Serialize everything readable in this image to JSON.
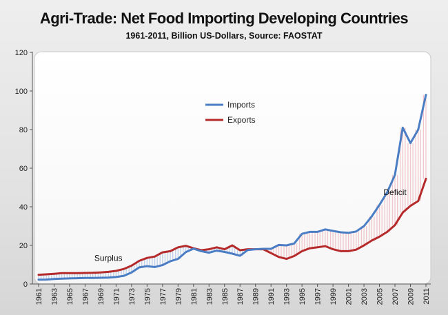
{
  "title": "Agri-Trade: Net Food Importing Developing Countries",
  "subtitle": "1961-2011, Billion US-Dollars, Source: FAOSTAT",
  "chart_data": {
    "type": "line",
    "title": "Agri-Trade: Net Food Importing Developing Countries",
    "subtitle": "1961-2011, Billion US-Dollars, Source: FAOSTAT",
    "xlabel": "",
    "ylabel": "",
    "xlim": [
      1961,
      2011
    ],
    "ylim": [
      0,
      120
    ],
    "yticks": [
      0,
      20,
      40,
      60,
      80,
      100,
      120
    ],
    "xticks": [
      1961,
      1963,
      1965,
      1967,
      1969,
      1971,
      1973,
      1975,
      1977,
      1979,
      1981,
      1983,
      1985,
      1987,
      1989,
      1991,
      1993,
      1995,
      1997,
      1999,
      2001,
      2003,
      2005,
      2007,
      2009,
      2011
    ],
    "grid": false,
    "legend_position": "upper-center",
    "x": [
      1961,
      1962,
      1963,
      1964,
      1965,
      1966,
      1967,
      1968,
      1969,
      1970,
      1971,
      1972,
      1973,
      1974,
      1975,
      1976,
      1977,
      1978,
      1979,
      1980,
      1981,
      1982,
      1983,
      1984,
      1985,
      1986,
      1987,
      1988,
      1989,
      1990,
      1991,
      1992,
      1993,
      1994,
      1995,
      1996,
      1997,
      1998,
      1999,
      2000,
      2001,
      2002,
      2003,
      2004,
      2005,
      2006,
      2007,
      2008,
      2009,
      2010,
      2011
    ],
    "series": [
      {
        "name": "Imports",
        "color": "#4a7dc4",
        "values": [
          2.2,
          2.3,
          2.6,
          2.8,
          2.9,
          3.0,
          3.1,
          3.1,
          3.2,
          3.3,
          3.6,
          4.2,
          6.0,
          8.6,
          9.2,
          8.8,
          9.8,
          11.8,
          13.0,
          16.5,
          18.3,
          17.0,
          16.2,
          17.3,
          16.6,
          15.7,
          14.6,
          17.6,
          18.0,
          18.2,
          18.2,
          20.2,
          20.0,
          21.0,
          26.0,
          27.0,
          27.0,
          28.3,
          27.5,
          26.8,
          26.5,
          27.2,
          30.0,
          35.0,
          41.0,
          47.5,
          56.5,
          81.0,
          73.0,
          80.0,
          98.0
        ]
      },
      {
        "name": "Exports",
        "color": "#b52a2a",
        "values": [
          4.8,
          5.0,
          5.3,
          5.6,
          5.6,
          5.6,
          5.7,
          5.8,
          6.0,
          6.3,
          6.8,
          7.8,
          9.5,
          12.0,
          13.5,
          14.2,
          16.4,
          17.0,
          19.0,
          19.8,
          18.5,
          17.5,
          18.0,
          19.0,
          18.0,
          20.0,
          17.5,
          18.0,
          18.0,
          18.0,
          16.0,
          14.0,
          13.0,
          14.5,
          17.0,
          18.5,
          19.0,
          19.6,
          18.0,
          17.0,
          17.0,
          17.8,
          20.0,
          22.5,
          24.5,
          27.0,
          30.5,
          37.0,
          40.5,
          43.0,
          54.5
        ]
      }
    ],
    "annotations": [
      {
        "text": "Surplus",
        "x": 1970,
        "y": 12
      },
      {
        "text": "Deficit",
        "x": 2007,
        "y": 46
      }
    ]
  }
}
